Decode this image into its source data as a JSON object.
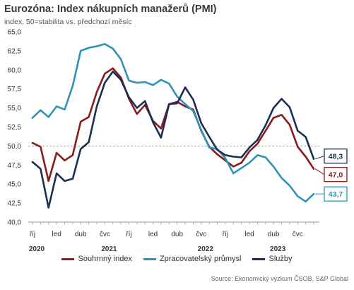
{
  "chart_data": {
    "type": "line",
    "title": "Eurozóna: Index nákupních manažerů (PMI)",
    "subtitle": "index, 50=stabilita vs. předchozí měsíc",
    "ylim": [
      40,
      65
    ],
    "yticks": [
      "65,0",
      "62,5",
      "60,0",
      "57,5",
      "55,0",
      "52,5",
      "50,0",
      "47,5",
      "45,0",
      "42,5",
      "40,0"
    ],
    "ytick_values": [
      65,
      62.5,
      60,
      57.5,
      55,
      52.5,
      50,
      47.5,
      45,
      42.5,
      40
    ],
    "reference_line": 50,
    "x_tick_labels": [
      {
        "i": 0,
        "month": "říj",
        "year": "2020"
      },
      {
        "i": 3,
        "month": "led",
        "year": ""
      },
      {
        "i": 6,
        "month": "dub",
        "year": ""
      },
      {
        "i": 9,
        "month": "čvc",
        "year": "2021"
      },
      {
        "i": 12,
        "month": "říj",
        "year": ""
      },
      {
        "i": 15,
        "month": "led",
        "year": ""
      },
      {
        "i": 18,
        "month": "dub",
        "year": ""
      },
      {
        "i": 21,
        "month": "čvc",
        "year": "2022"
      },
      {
        "i": 24,
        "month": "říj",
        "year": ""
      },
      {
        "i": 27,
        "month": "led",
        "year": ""
      },
      {
        "i": 30,
        "month": "dub",
        "year": "2023"
      },
      {
        "i": 33,
        "month": "čvc",
        "year": ""
      }
    ],
    "x_count": 36,
    "series": [
      {
        "name": "Souhrnný index",
        "color": "#8B1A1A",
        "end_label": "47,0",
        "values": [
          50.4,
          49.9,
          45.4,
          49.1,
          48.1,
          48.8,
          53.2,
          53.8,
          57.1,
          59.5,
          60.2,
          59.0,
          56.2,
          54.2,
          55.4,
          53.3,
          52.3,
          55.5,
          55.8,
          55.2,
          54.8,
          52.0,
          49.9,
          48.9,
          48.1,
          47.3,
          47.8,
          49.3,
          50.3,
          52.0,
          53.7,
          54.1,
          52.8,
          49.9,
          48.6,
          47.0
        ]
      },
      {
        "name": "Zpracovatelský průmysl",
        "color": "#2E93B8",
        "end_label": "43,7",
        "values": [
          53.7,
          54.7,
          53.8,
          55.2,
          54.8,
          57.9,
          62.5,
          62.9,
          63.1,
          63.4,
          62.8,
          61.4,
          58.6,
          58.3,
          58.4,
          58.0,
          58.7,
          58.2,
          56.5,
          55.5,
          54.6,
          52.1,
          49.8,
          49.6,
          48.4,
          46.4,
          47.1,
          47.8,
          48.8,
          48.5,
          47.3,
          45.8,
          44.8,
          43.4,
          42.7,
          43.7
        ]
      },
      {
        "name": "Služby",
        "color": "#1B2F52",
        "end_label": "48,3",
        "values": [
          47.9,
          47.0,
          41.9,
          46.4,
          45.4,
          45.7,
          49.6,
          50.5,
          55.2,
          58.3,
          59.8,
          58.7,
          56.4,
          55.0,
          55.9,
          53.1,
          51.1,
          55.5,
          55.6,
          57.7,
          56.1,
          53.0,
          51.2,
          49.5,
          48.8,
          48.6,
          48.5,
          49.8,
          50.8,
          52.7,
          55.0,
          56.2,
          55.1,
          52.0,
          51.2,
          48.3
        ]
      }
    ],
    "grid": false,
    "legend_position": "bottom"
  },
  "source": "Source: Ekonomický výzkum ČSOB, S&P Global"
}
